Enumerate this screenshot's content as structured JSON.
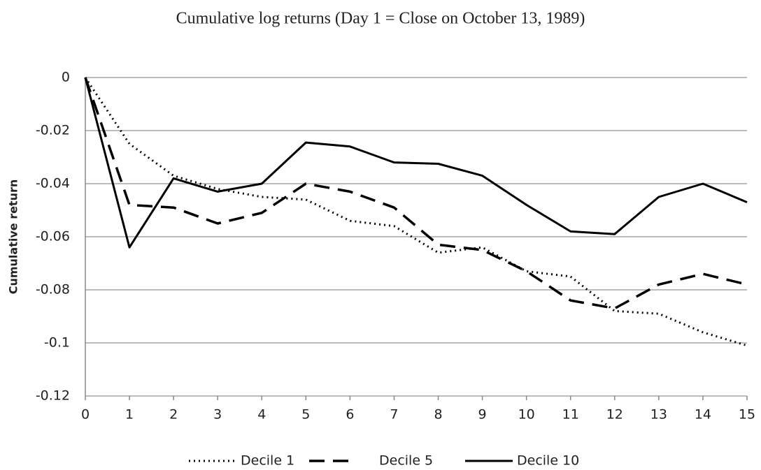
{
  "chart_data": {
    "type": "line",
    "title": "Cumulative log returns (Day 1 = Close on October 13, 1989)",
    "y_label": "Cumulative return",
    "x": [
      0,
      1,
      2,
      3,
      4,
      5,
      6,
      7,
      8,
      9,
      10,
      11,
      12,
      13,
      14,
      15
    ],
    "series": [
      {
        "name": "Decile 1",
        "color": "#000000",
        "values": [
          0,
          -0.025,
          -0.037,
          -0.042,
          -0.045,
          -0.046,
          -0.054,
          -0.056,
          -0.066,
          -0.064,
          -0.073,
          -0.075,
          -0.088,
          -0.089,
          -0.096,
          -0.101
        ]
      },
      {
        "name": "Decile 5",
        "color": "#000000",
        "values": [
          0,
          -0.048,
          -0.049,
          -0.055,
          -0.051,
          -0.04,
          -0.043,
          -0.049,
          -0.063,
          -0.065,
          -0.073,
          -0.084,
          -0.087,
          -0.078,
          -0.074,
          -0.078
        ]
      },
      {
        "name": "Decile 10",
        "color": "#000000",
        "values": [
          0,
          -0.064,
          -0.038,
          -0.043,
          -0.04,
          -0.0245,
          -0.026,
          -0.032,
          -0.0325,
          -0.037,
          -0.048,
          -0.058,
          -0.059,
          -0.045,
          -0.04,
          -0.047
        ]
      }
    ],
    "xlim": [
      0,
      15
    ],
    "ylim": [
      -0.12,
      0
    ],
    "xticks": [
      0,
      1,
      2,
      3,
      4,
      5,
      6,
      7,
      8,
      9,
      10,
      11,
      12,
      13,
      14,
      15
    ],
    "yticks": [
      0,
      -0.02,
      -0.04,
      -0.06,
      -0.08,
      -0.1,
      -0.12
    ],
    "grid": true,
    "legend": "bottom"
  }
}
